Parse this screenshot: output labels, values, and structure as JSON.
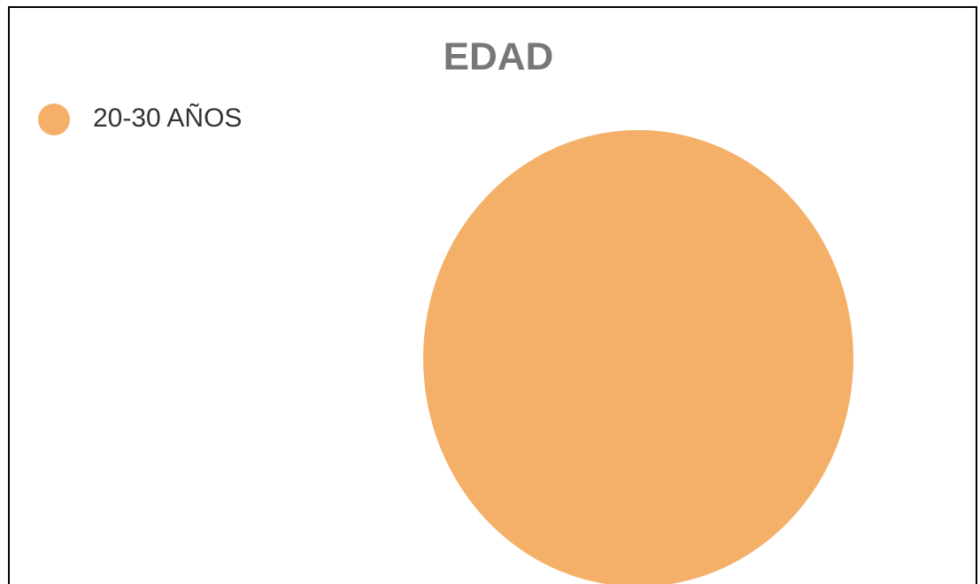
{
  "chart_data": {
    "type": "pie",
    "title": "EDAD",
    "categories": [
      "20-30 AÑOS"
    ],
    "values": [
      100
    ],
    "colors": [
      "#f4b068"
    ],
    "legend": "top-left"
  }
}
